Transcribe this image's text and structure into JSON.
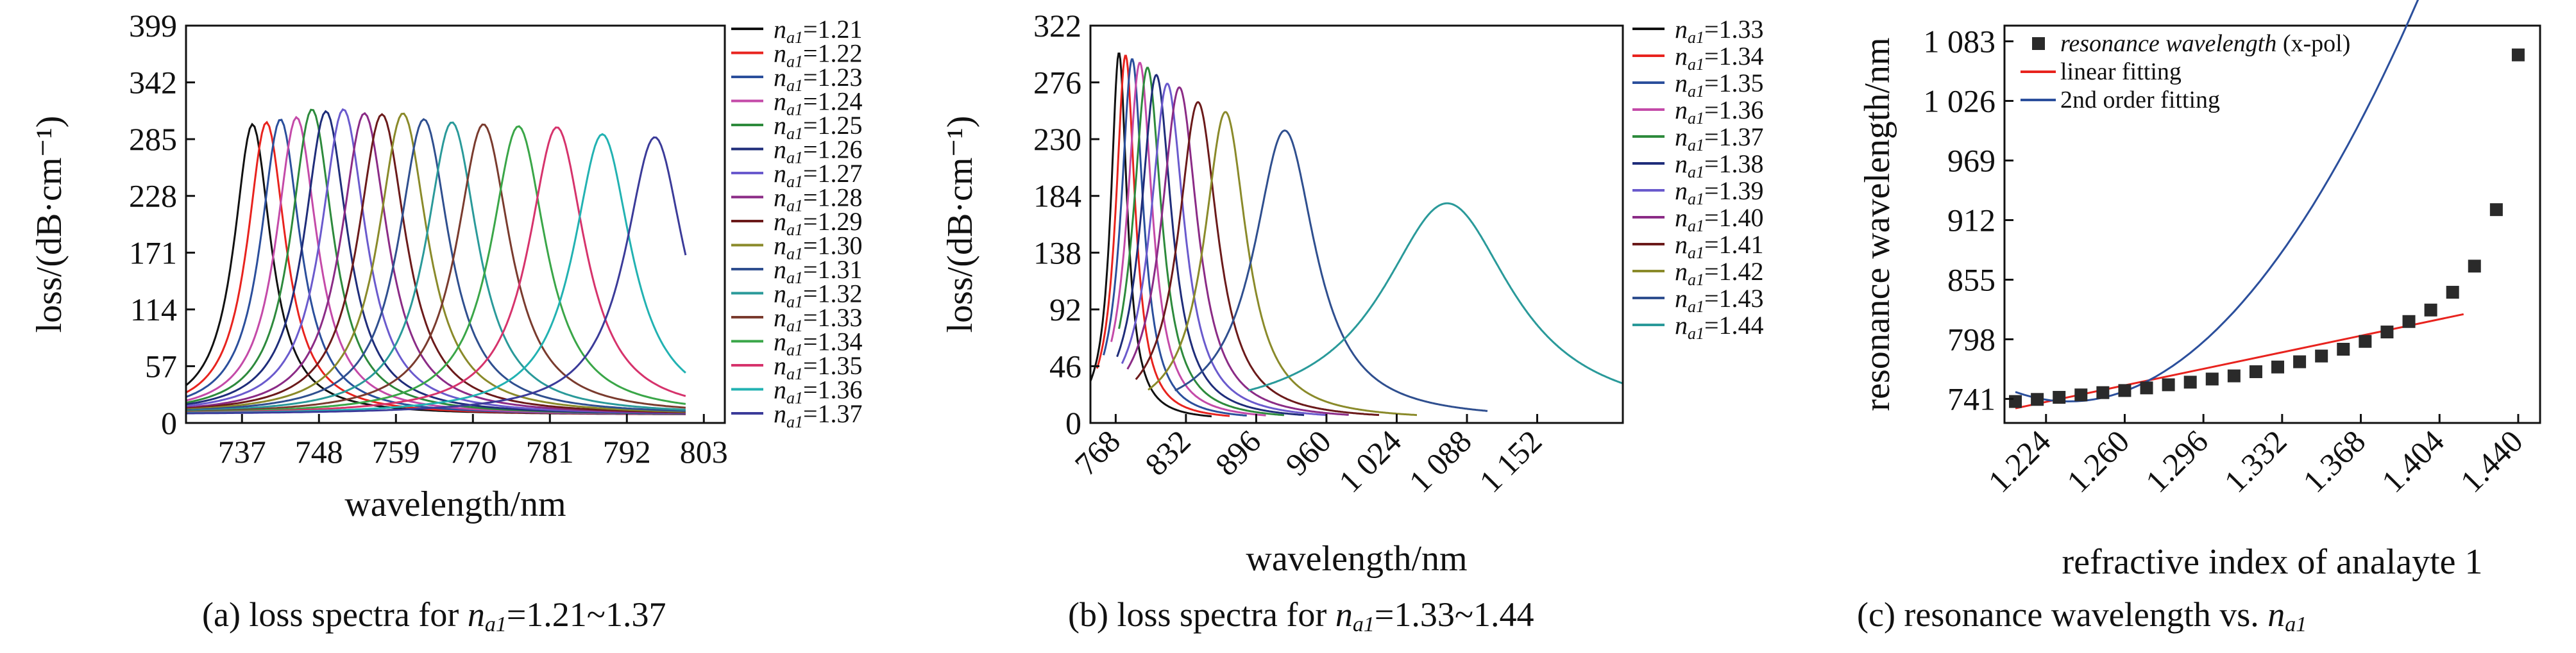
{
  "chart_data": [
    {
      "type": "line",
      "id": "a",
      "caption": "(a) loss spectra for n_a1=1.21~1.37",
      "caption_parts": {
        "prefix": "(a) loss spectra for ",
        "sym": "n",
        "sub": "a1",
        "suffix": "=1.21~1.37"
      },
      "xlabel": "wavelength/nm",
      "ylabel": "loss/(dB·cm⁻¹)",
      "xlim": [
        729,
        806
      ],
      "ylim": [
        0,
        399
      ],
      "xticks": [
        737,
        748,
        759,
        770,
        781,
        792,
        803
      ],
      "xtick_labels": [
        "737",
        "748",
        "759",
        "770",
        "781",
        "792",
        "803"
      ],
      "yticks": [
        0,
        57,
        114,
        171,
        228,
        285,
        342,
        399
      ],
      "ytick_labels": [
        "0",
        "57",
        "114",
        "171",
        "228",
        "285",
        "342",
        "399"
      ],
      "grid": false,
      "legend_position": "right-outside",
      "series": [
        {
          "name": "1.21",
          "peak_x": 738.5,
          "peak_y": 300,
          "color": "#111111"
        },
        {
          "name": "1.22",
          "peak_x": 740.5,
          "peak_y": 302,
          "color": "#e8231e"
        },
        {
          "name": "1.23",
          "peak_x": 742.5,
          "peak_y": 305,
          "color": "#2b4f9c"
        },
        {
          "name": "1.24",
          "peak_x": 744.8,
          "peak_y": 307,
          "color": "#c44aa8"
        },
        {
          "name": "1.25",
          "peak_x": 747.0,
          "peak_y": 315,
          "color": "#2d8a3c"
        },
        {
          "name": "1.26",
          "peak_x": 749.0,
          "peak_y": 313,
          "color": "#1f2d7a"
        },
        {
          "name": "1.27",
          "peak_x": 751.5,
          "peak_y": 315,
          "color": "#6a5acd"
        },
        {
          "name": "1.28",
          "peak_x": 754.5,
          "peak_y": 311,
          "color": "#8b2b86"
        },
        {
          "name": "1.29",
          "peak_x": 757.0,
          "peak_y": 310,
          "color": "#6b1a1a"
        },
        {
          "name": "1.30",
          "peak_x": 760.0,
          "peak_y": 311,
          "color": "#8a8a2a"
        },
        {
          "name": "1.31",
          "peak_x": 763.0,
          "peak_y": 305,
          "color": "#2f4f8f"
        },
        {
          "name": "1.32",
          "peak_x": 767.0,
          "peak_y": 302,
          "color": "#2a9a9a"
        },
        {
          "name": "1.33",
          "peak_x": 771.5,
          "peak_y": 300,
          "color": "#7a3b2e"
        },
        {
          "name": "1.34",
          "peak_x": 776.5,
          "peak_y": 298,
          "color": "#3aa648"
        },
        {
          "name": "1.35",
          "peak_x": 782.0,
          "peak_y": 297,
          "color": "#d6336c"
        },
        {
          "name": "1.36",
          "peak_x": 788.5,
          "peak_y": 290,
          "color": "#22b2b2"
        },
        {
          "name": "1.37",
          "peak_x": 796.0,
          "peak_y": 287,
          "color": "#3b3b99"
        }
      ]
    },
    {
      "type": "line",
      "id": "b",
      "caption": "(b) loss spectra for n_a1=1.33~1.44",
      "caption_parts": {
        "prefix": "(b) loss spectra for ",
        "sym": "n",
        "sub": "a1",
        "suffix": "=1.33~1.44"
      },
      "xlabel": "wavelength/nm",
      "ylabel": "loss/(dB·cm⁻¹)",
      "xlim": [
        745,
        1230
      ],
      "ylim": [
        0,
        322
      ],
      "xticks": [
        768,
        832,
        896,
        960,
        1024,
        1088,
        1152
      ],
      "xtick_labels": [
        "768",
        "832",
        "896",
        "960",
        "1 024",
        "1 088",
        "1 152"
      ],
      "yticks": [
        0,
        46,
        92,
        138,
        184,
        230,
        276,
        322
      ],
      "ytick_labels": [
        "0",
        "46",
        "92",
        "138",
        "184",
        "230",
        "276",
        "322"
      ],
      "grid": false,
      "legend_position": "right-outside",
      "series": [
        {
          "name": "1.33",
          "peak_x": 771,
          "peak_y": 300,
          "color": "#111111"
        },
        {
          "name": "1.34",
          "peak_x": 777,
          "peak_y": 298,
          "color": "#e8231e"
        },
        {
          "name": "1.35",
          "peak_x": 783,
          "peak_y": 295,
          "color": "#2b4f9c"
        },
        {
          "name": "1.36",
          "peak_x": 790,
          "peak_y": 292,
          "color": "#c44aa8"
        },
        {
          "name": "1.37",
          "peak_x": 797,
          "peak_y": 288,
          "color": "#2d8a3c"
        },
        {
          "name": "1.38",
          "peak_x": 805,
          "peak_y": 282,
          "color": "#1f2d7a"
        },
        {
          "name": "1.39",
          "peak_x": 815,
          "peak_y": 275,
          "color": "#6a5acd"
        },
        {
          "name": "1.40",
          "peak_x": 826,
          "peak_y": 272,
          "color": "#8b2b86"
        },
        {
          "name": "1.41",
          "peak_x": 843,
          "peak_y": 260,
          "color": "#6b1a1a"
        },
        {
          "name": "1.42",
          "peak_x": 868,
          "peak_y": 252,
          "color": "#8a8a2a"
        },
        {
          "name": "1.43",
          "peak_x": 922,
          "peak_y": 237,
          "color": "#2f4f8f"
        },
        {
          "name": "1.44",
          "peak_x": 1070,
          "peak_y": 178,
          "color": "#2a9a9a"
        }
      ]
    },
    {
      "type": "scatter",
      "id": "c",
      "caption": "(c) resonance wavelength vs. n_a1",
      "caption_parts": {
        "prefix": "(c) resonance wavelength vs. ",
        "sym": "n",
        "sub": "a1",
        "suffix": ""
      },
      "xlabel": "refractive index of analayte 1",
      "ylabel": "resonance wavelength/nm",
      "xlim": [
        1.205,
        1.45
      ],
      "ylim": [
        718,
        1098
      ],
      "xticks": [
        1.224,
        1.26,
        1.296,
        1.332,
        1.368,
        1.404,
        1.44
      ],
      "xtick_labels": [
        "1.224",
        "1.260",
        "1.296",
        "1.332",
        "1.368",
        "1.404",
        "1.440"
      ],
      "yticks": [
        741,
        798,
        855,
        912,
        969,
        1026,
        1083
      ],
      "ytick_labels": [
        "741",
        "798",
        "855",
        "912",
        "969",
        "1 026",
        "1 083"
      ],
      "grid": false,
      "legend_position": "top-left",
      "legend": [
        {
          "label": "resonance wavelength",
          "label_suffix": "(x-pol)",
          "kind": "marker",
          "color": "#2a2a2a"
        },
        {
          "label": "linear fitting",
          "kind": "line",
          "color": "#e8231e"
        },
        {
          "label": "2nd order fitting",
          "kind": "line",
          "color": "#2b4f9c"
        }
      ],
      "points": [
        {
          "x": 1.21,
          "y": 738.5
        },
        {
          "x": 1.22,
          "y": 740.5
        },
        {
          "x": 1.23,
          "y": 742.5
        },
        {
          "x": 1.24,
          "y": 744.8
        },
        {
          "x": 1.25,
          "y": 747.0
        },
        {
          "x": 1.26,
          "y": 749.0
        },
        {
          "x": 1.27,
          "y": 751.5
        },
        {
          "x": 1.28,
          "y": 754.5
        },
        {
          "x": 1.29,
          "y": 757.0
        },
        {
          "x": 1.3,
          "y": 760.0
        },
        {
          "x": 1.31,
          "y": 763.0
        },
        {
          "x": 1.32,
          "y": 767.0
        },
        {
          "x": 1.33,
          "y": 771.5
        },
        {
          "x": 1.34,
          "y": 776.5
        },
        {
          "x": 1.35,
          "y": 782.0
        },
        {
          "x": 1.36,
          "y": 788.5
        },
        {
          "x": 1.37,
          "y": 796.0
        },
        {
          "x": 1.38,
          "y": 805.0
        },
        {
          "x": 1.39,
          "y": 815.0
        },
        {
          "x": 1.4,
          "y": 826.0
        },
        {
          "x": 1.41,
          "y": 843.0
        },
        {
          "x": 1.42,
          "y": 868.0
        },
        {
          "x": 1.43,
          "y": 922.0
        },
        {
          "x": 1.44,
          "y": 1070.0
        }
      ],
      "linear_fit": {
        "x0": 1.21,
        "x1": 1.415,
        "y0": 732,
        "y1": 822
      },
      "quadratic_fit": {
        "x0": 1.21,
        "x1": 1.415,
        "a": 15067,
        "b": -37200,
        "c": 23700
      }
    }
  ]
}
